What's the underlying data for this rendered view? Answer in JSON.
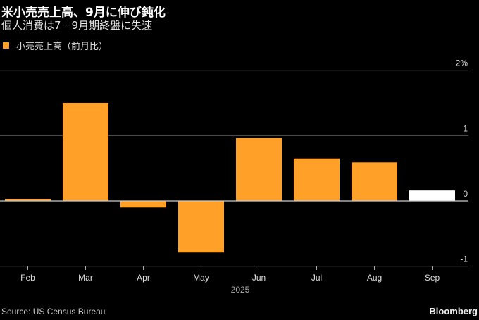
{
  "header": {
    "title": "米小売売上高、9月に伸び鈍化",
    "subtitle": "個人消費は7－9月期終盤に失速"
  },
  "legend": {
    "label": "小売売上高（前月比）",
    "color": "#ffa028"
  },
  "footer": {
    "source": "Source: US Census Bureau",
    "brand": "Bloomberg"
  },
  "colors": {
    "bar": "#ffa028",
    "highlight": "#ffffff",
    "grid": "#555555",
    "zero": "#cccccc",
    "background": "#000000"
  },
  "chart_data": {
    "type": "bar",
    "title": "米小売売上高、9月に伸び鈍化",
    "subtitle": "個人消費は7－9月期終盤に失速",
    "categories": [
      "Feb",
      "Mar",
      "Apr",
      "May",
      "Jun",
      "Jul",
      "Aug",
      "Sep"
    ],
    "series": [
      {
        "name": "小売売上高（前月比）",
        "values": [
          0.03,
          1.5,
          -0.1,
          -0.79,
          0.96,
          0.65,
          0.59,
          0.16
        ]
      }
    ],
    "highlight_index": 7,
    "xlabel": "2025",
    "ylabel": "",
    "yticks": [
      -1,
      0,
      1,
      2
    ],
    "ytick_labels": [
      "-1",
      "0",
      "1",
      "2%"
    ],
    "ylim": [
      -1,
      2
    ],
    "grid": true,
    "legend_position": "top-left",
    "source": "Source: US Census Bureau"
  }
}
